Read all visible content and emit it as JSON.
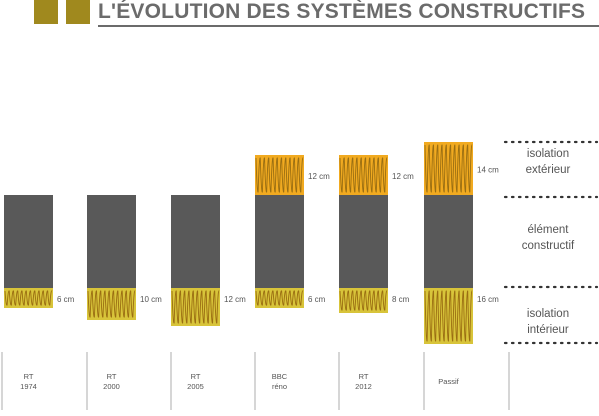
{
  "title": "L'ÉVOLUTION DES SYSTÈMES CONSTRUCTIFS",
  "colors": {
    "title": "#6b6b6b",
    "square": "#a0891e",
    "wall": "#595959",
    "insulation_outer": "#f1aa20",
    "insulation_inner": "#d8c43a",
    "wave": "#9a6e12",
    "text": "#555555",
    "dots": "#333333"
  },
  "columns": [
    {
      "code": "rt1974",
      "label": [
        "RT",
        "1974"
      ],
      "exterior": null,
      "interior": "6 cm"
    },
    {
      "code": "rt2000",
      "label": [
        "RT",
        "2000"
      ],
      "exterior": null,
      "interior": "10 cm"
    },
    {
      "code": "rt2005",
      "label": [
        "RT",
        "2005"
      ],
      "exterior": null,
      "interior": "12 cm"
    },
    {
      "code": "bbc",
      "label": [
        "BBC",
        "réno"
      ],
      "exterior": "12 cm",
      "interior": "6 cm"
    },
    {
      "code": "rt2012",
      "label": [
        "RT",
        "2012"
      ],
      "exterior": "12 cm",
      "interior": "8 cm"
    },
    {
      "code": "passif",
      "label": [
        "Passif"
      ],
      "exterior": "14 cm",
      "interior": "16 cm"
    }
  ],
  "legend": [
    {
      "code": "exterior",
      "lines": [
        "isolation",
        "extérieur"
      ]
    },
    {
      "code": "element",
      "lines": [
        "élément",
        "constructif"
      ]
    },
    {
      "code": "interior",
      "lines": [
        "isolation",
        "intérieur"
      ]
    }
  ]
}
